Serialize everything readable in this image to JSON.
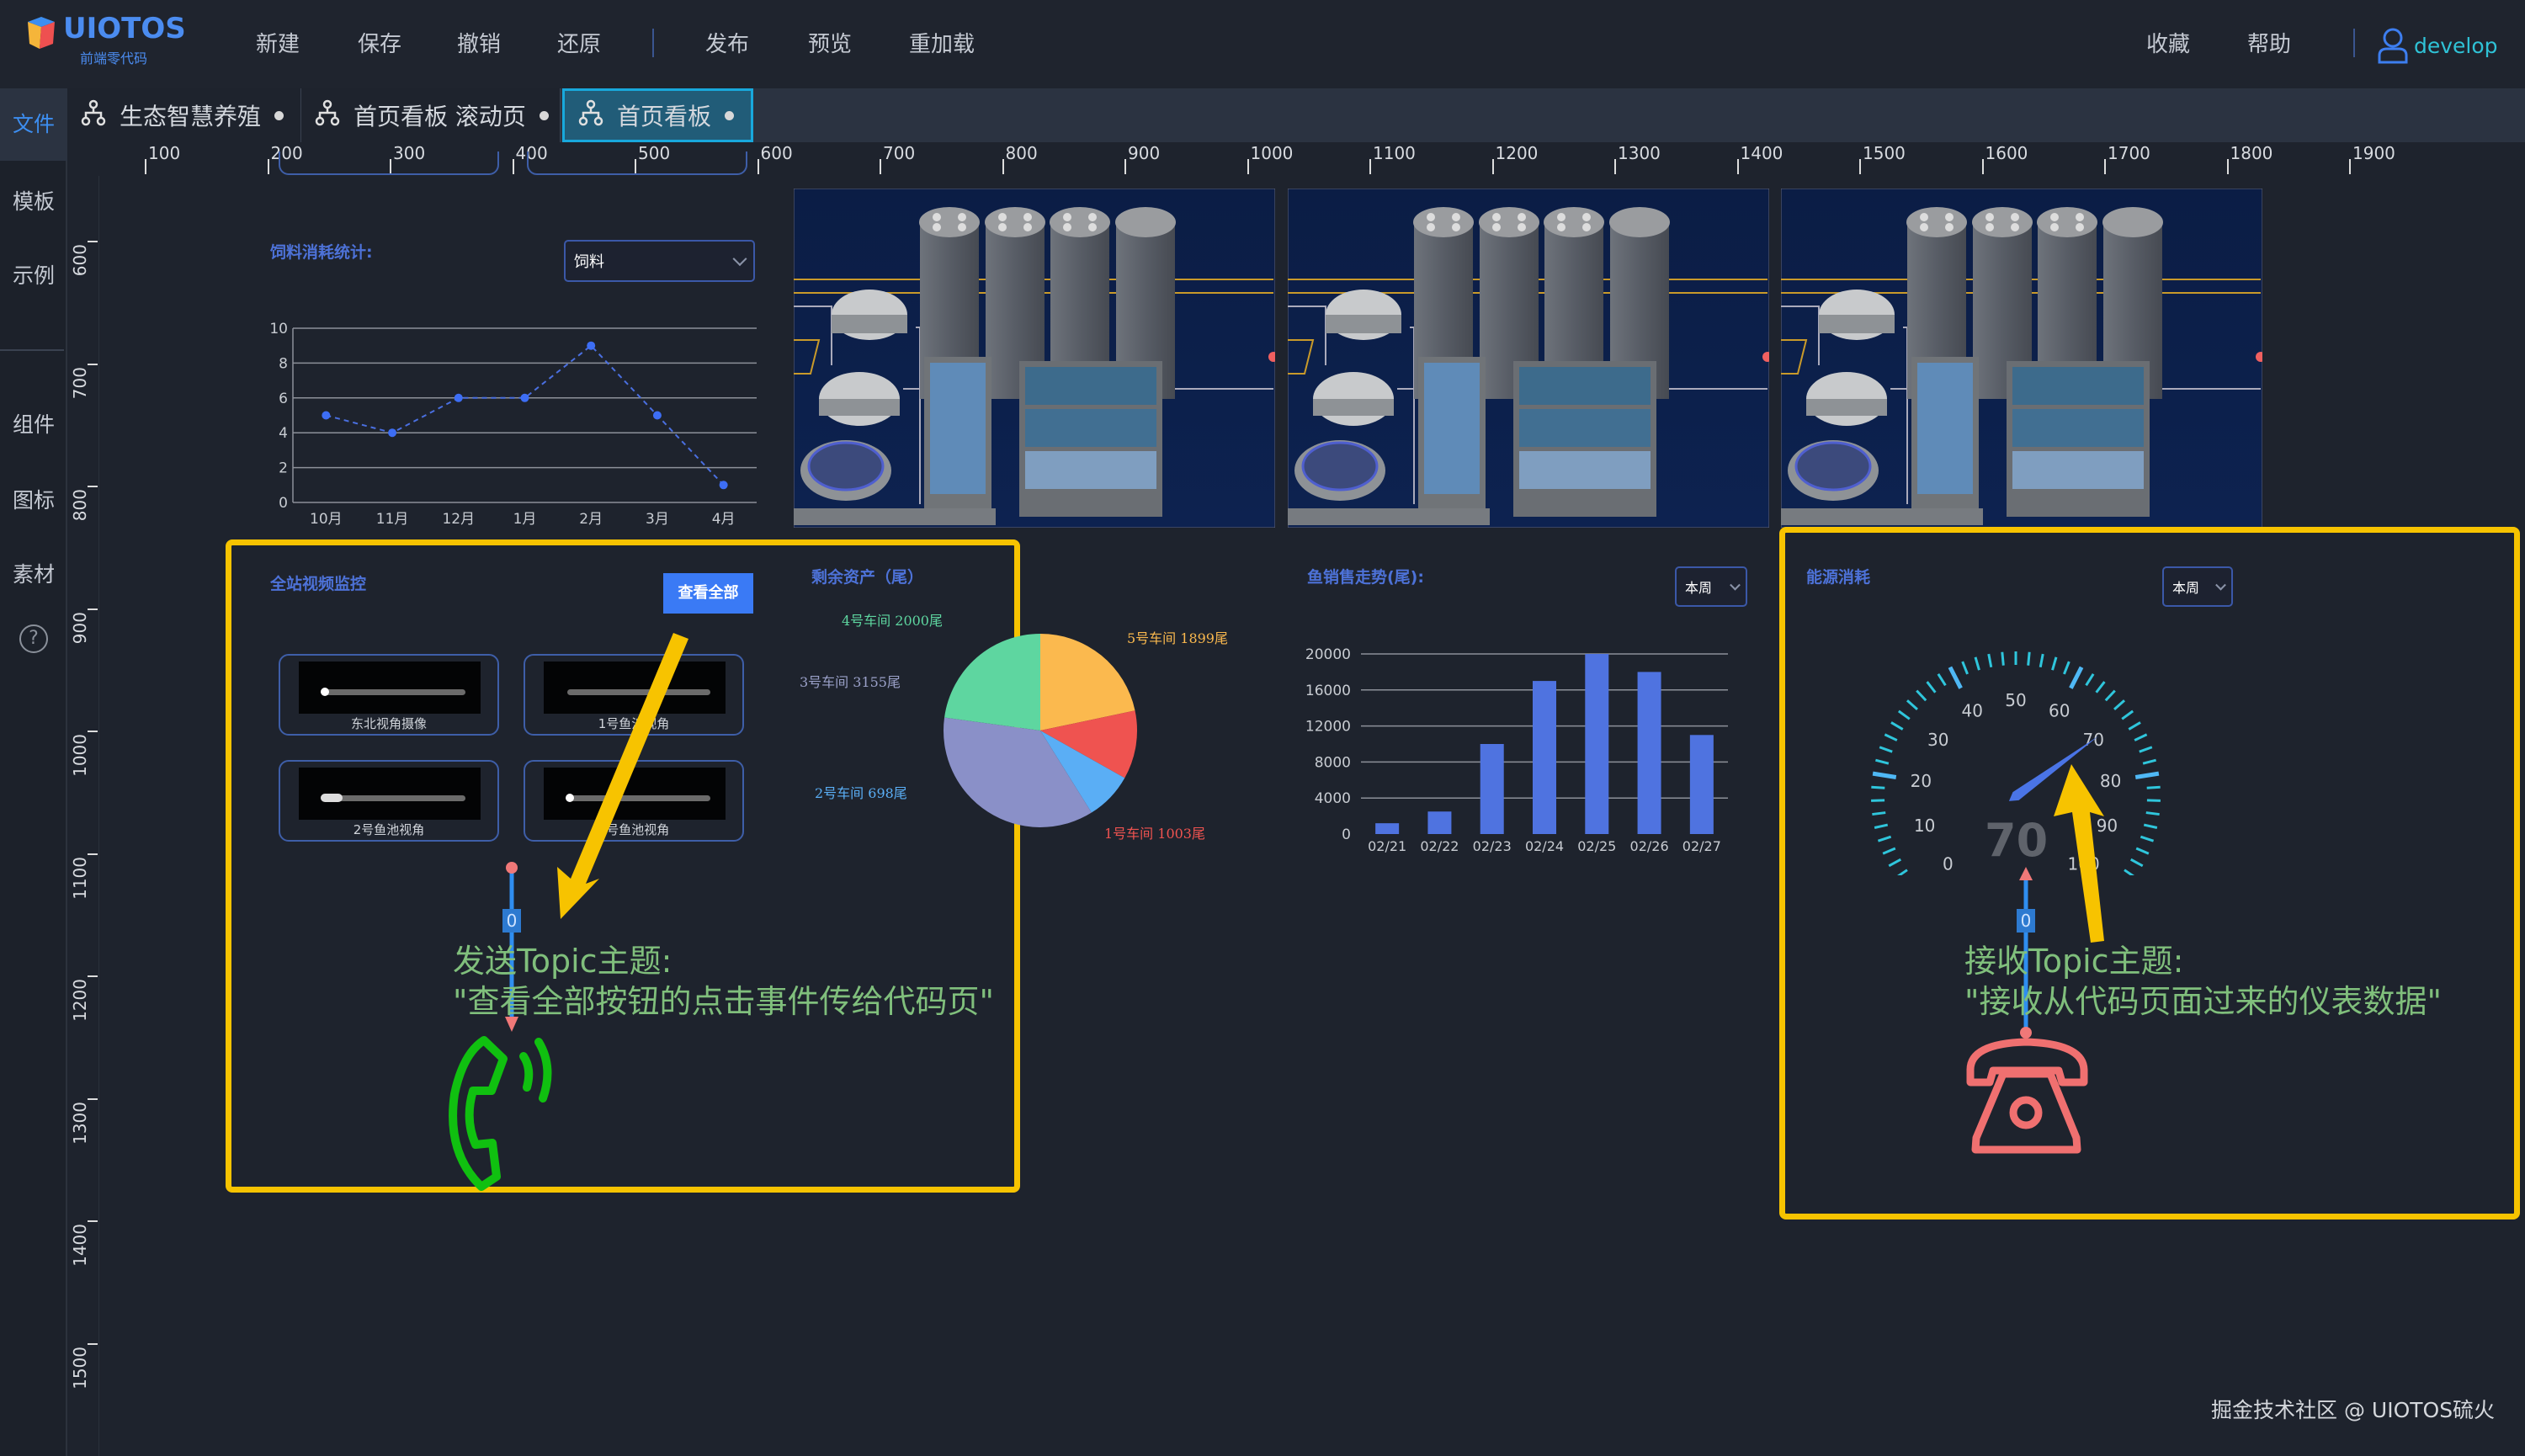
{
  "app": {
    "logo_text": "UIOTOS",
    "logo_sub": "前端零代码"
  },
  "menu": {
    "left": [
      "新建",
      "保存",
      "撤销",
      "还原"
    ],
    "middle": [
      "发布",
      "预览",
      "重加载"
    ],
    "right": [
      "收藏",
      "帮助"
    ],
    "user": "develop"
  },
  "tabs": [
    {
      "label": "生态智慧养殖",
      "active": false
    },
    {
      "label": "首页看板 滚动页",
      "active": false
    },
    {
      "label": "首页看板",
      "active": true
    }
  ],
  "sidebar": {
    "items": [
      "文件",
      "模板",
      "示例",
      "组件",
      "图标",
      "素材"
    ],
    "active": "文件"
  },
  "ruler": {
    "top": [
      "100",
      "200",
      "300",
      "400",
      "500",
      "600",
      "700",
      "800",
      "900",
      "1000",
      "1100",
      "1200",
      "1300",
      "1400",
      "1500",
      "1600",
      "1700",
      "1800",
      "1900"
    ],
    "left": [
      "600",
      "700",
      "800",
      "900",
      "1000",
      "1100",
      "1200",
      "1300",
      "1400",
      "1500"
    ]
  },
  "feed": {
    "title": "饲料消耗统计:",
    "select": "饲料"
  },
  "video": {
    "title": "全站视频监控",
    "button": "查看全部",
    "cards": [
      "东北视角摄像",
      "1号鱼池视角",
      "2号鱼池视角",
      "3号鱼池视角"
    ]
  },
  "pie_title": "剩余资产（尾）",
  "sales": {
    "title": "鱼销售走势(尾):",
    "select": "本周"
  },
  "energy": {
    "title": "能源消耗",
    "select": "本周",
    "value_text": "70"
  },
  "annotations": {
    "send_line1": "发送Topic主题:",
    "send_line2": "\"查看全部按钮的点击事件传给代码页\"",
    "recv_line1": "接收Topic主题:",
    "recv_line2": "\"接收从代码页面过来的仪表数据\"",
    "connector_left": "0",
    "connector_right": "0"
  },
  "footer": "掘金技术社区 @ UIOTOS硫火",
  "colors": {
    "accent": "#3a7af5",
    "highlight_box": "#f7c300",
    "note_text": "#80bf7c",
    "send_phone": "#10c010",
    "recv_phone": "#f07070"
  },
  "chart_data": [
    {
      "type": "line",
      "categories": [
        "10月",
        "11月",
        "12月",
        "1月",
        "2月",
        "3月",
        "4月"
      ],
      "values": [
        5,
        4,
        6,
        6,
        9,
        5,
        1
      ],
      "ylim": [
        0,
        10
      ],
      "yticks": [
        "0",
        "2",
        "4",
        "6",
        "8",
        "10"
      ],
      "grid": true,
      "line_style": "dashed"
    },
    {
      "type": "pie",
      "slices": [
        {
          "label": "5号车间  1899尾",
          "value": 1899,
          "color": "#fbb94e"
        },
        {
          "label": "1号车间  1003尾",
          "value": 1003,
          "color": "#ef5350"
        },
        {
          "label": "2号车间  698尾",
          "value": 698,
          "color": "#5aaef5"
        },
        {
          "label": "3号车间  3155尾",
          "value": 3155,
          "color": "#8a90c8"
        },
        {
          "label": "4号车间  2000尾",
          "value": 2000,
          "color": "#5ed6a0"
        }
      ]
    },
    {
      "type": "bar",
      "categories": [
        "02/21",
        "02/22",
        "02/23",
        "02/24",
        "02/25",
        "02/26",
        "02/27"
      ],
      "values": [
        1200,
        2500,
        10000,
        17000,
        20000,
        18000,
        11000
      ],
      "ylim": [
        0,
        20000
      ],
      "yticks": [
        "0",
        "4000",
        "8000",
        "12000",
        "16000",
        "20000"
      ],
      "grid": true,
      "color": "#4f73e0"
    },
    {
      "type": "gauge",
      "min": 0,
      "max": 100,
      "value": 70,
      "tick_labels": [
        "0",
        "10",
        "20",
        "30",
        "40",
        "50",
        "60",
        "70",
        "80",
        "90",
        "100"
      ]
    }
  ]
}
